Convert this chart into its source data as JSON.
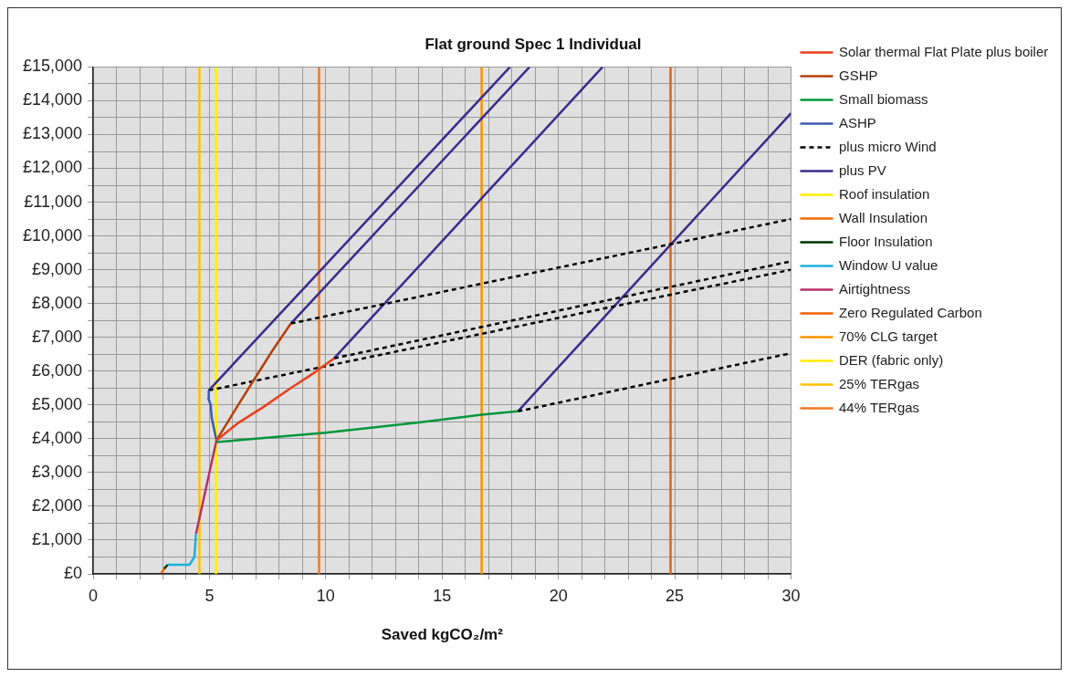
{
  "chart_data": {
    "type": "line",
    "title": "Flat ground Spec 1 Individual",
    "xlabel": "Saved kgCO₂/m²",
    "xlim": [
      0,
      30
    ],
    "xticks": [
      0,
      {
        "value": 1,
        "label": null
      },
      {
        "value": 2,
        "label": null
      },
      {
        "value": 3,
        "label": null
      },
      {
        "value": 4,
        "label": null
      },
      5,
      {
        "value": 6,
        "label": null
      },
      {
        "value": 7,
        "label": null
      },
      {
        "value": 8,
        "label": null
      },
      {
        "value": 9,
        "label": null
      },
      10,
      {
        "value": 11,
        "label": null
      },
      {
        "value": 12,
        "label": null
      },
      {
        "value": 13,
        "label": null
      },
      {
        "value": 14,
        "label": null
      },
      15,
      {
        "value": 16,
        "label": null
      },
      {
        "value": 17,
        "label": null
      },
      {
        "value": 18,
        "label": null
      },
      {
        "value": 19,
        "label": null
      },
      20,
      {
        "value": 21,
        "label": null
      },
      {
        "value": 22,
        "label": null
      },
      {
        "value": 23,
        "label": null
      },
      {
        "value": 24,
        "label": null
      },
      25,
      {
        "value": 26,
        "label": null
      },
      {
        "value": 27,
        "label": null
      },
      {
        "value": 28,
        "label": null
      },
      {
        "value": 29,
        "label": null
      },
      30
    ],
    "ylim": [
      0,
      15000
    ],
    "yticks": [
      {
        "value": 0,
        "label": "£0"
      },
      {
        "value": 500,
        "label": null
      },
      {
        "value": 1000,
        "label": "£1,000"
      },
      {
        "value": 1500,
        "label": null
      },
      {
        "value": 2000,
        "label": "£2,000"
      },
      {
        "value": 2500,
        "label": null
      },
      {
        "value": 3000,
        "label": "£3,000"
      },
      {
        "value": 3500,
        "label": null
      },
      {
        "value": 4000,
        "label": "£4,000"
      },
      {
        "value": 4500,
        "label": null
      },
      {
        "value": 5000,
        "label": "£5,000"
      },
      {
        "value": 5500,
        "label": null
      },
      {
        "value": 6000,
        "label": "£6,000"
      },
      {
        "value": 6500,
        "label": null
      },
      {
        "value": 7000,
        "label": "£7,000"
      },
      {
        "value": 7500,
        "label": null
      },
      {
        "value": 8000,
        "label": "£8,000"
      },
      {
        "value": 8500,
        "label": null
      },
      {
        "value": 9000,
        "label": "£9,000"
      },
      {
        "value": 9500,
        "label": null
      },
      {
        "value": 10000,
        "label": "£10,000"
      },
      {
        "value": 10500,
        "label": null
      },
      {
        "value": 11000,
        "label": "£11,000"
      },
      {
        "value": 11500,
        "label": null
      },
      {
        "value": 12000,
        "label": "£12,000"
      },
      {
        "value": 12500,
        "label": null
      },
      {
        "value": 13000,
        "label": "£13,000"
      },
      {
        "value": 13500,
        "label": null
      },
      {
        "value": 14000,
        "label": "£14,000"
      },
      {
        "value": 14500,
        "label": null
      },
      {
        "value": 15000,
        "label": "£15,000"
      }
    ],
    "grid": true,
    "legend": "right",
    "marker": "none",
    "line_style": "solid",
    "series": [
      {
        "name": "Solar thermal Flat Plate plus boiler",
        "color": "#e8401c",
        "x": [
          5.3,
          6.2,
          7.3,
          8.5,
          9.5,
          10.36
        ],
        "values": [
          3950,
          4450,
          4930,
          5500,
          5950,
          6380
        ]
      },
      {
        "name": "GSHP",
        "color": "#b5400a",
        "x": [
          5.3,
          6.1,
          6.9,
          7.7,
          8.5
        ],
        "values": [
          3950,
          4850,
          5730,
          6600,
          7410
        ]
      },
      {
        "name": "Small biomass",
        "color": "#00963c",
        "x": [
          5.3,
          10,
          14,
          16.7,
          18.26
        ],
        "values": [
          3900,
          4180,
          4480,
          4710,
          4810
        ]
      },
      {
        "name": "ASHP",
        "color": "#3c5ab4",
        "x": [
          5.3,
          5.1,
          5.05,
          4.95,
          4.97
        ],
        "values": [
          3950,
          4600,
          5000,
          5200,
          5430
        ]
      },
      {
        "name": "plus micro Wind",
        "color": "#000000",
        "line_style": "dashed",
        "x": [
          4.97,
          30,
          null,
          8.5,
          30,
          null,
          10.36,
          30,
          null,
          18.26,
          30
        ],
        "values": [
          5430,
          9000,
          null,
          7410,
          10500,
          null,
          6380,
          9250,
          null,
          4810,
          6530
        ]
      },
      {
        "name": "plus PV",
        "color": "#3c2a8c",
        "x": [
          4.97,
          17.92,
          null,
          8.5,
          18.76,
          null,
          10.36,
          21.9,
          null,
          18.26,
          30
        ],
        "values": [
          5430,
          15000,
          null,
          7410,
          15000,
          null,
          6380,
          15000,
          null,
          4810,
          13630
        ]
      },
      {
        "name": "Roof insulation",
        "color": "#ffee00",
        "x": [
          null
        ],
        "values": [
          null
        ]
      },
      {
        "name": "Wall Insulation",
        "color": "#f06a00",
        "x": [
          2.93,
          3.05
        ],
        "values": [
          30,
          150
        ]
      },
      {
        "name": "Floor Insulation",
        "color": "#003300",
        "x": [
          3.05,
          3.2
        ],
        "values": [
          150,
          270
        ]
      },
      {
        "name": "Window U value",
        "color": "#1ab0d8",
        "x": [
          3.2,
          4.14,
          4.35,
          4.42
        ],
        "values": [
          270,
          270,
          500,
          1180
        ]
      },
      {
        "name": "Airtightness",
        "color": "#b8306a",
        "x": [
          4.42,
          5.3
        ],
        "values": [
          1180,
          3950
        ]
      },
      {
        "name": "Zero Regulated Carbon",
        "color": "#f06000",
        "x": [
          24.82,
          24.82
        ],
        "values": [
          0,
          15000
        ]
      },
      {
        "name": "70% CLG target",
        "color": "#f79400",
        "x": [
          16.7,
          16.7
        ],
        "values": [
          0,
          15000
        ]
      },
      {
        "name": "DER (fabric only)",
        "color": "#ffee00",
        "x": [
          5.28,
          5.28
        ],
        "values": [
          0,
          15000
        ]
      },
      {
        "name": "25% TERgas",
        "color": "#ffc000",
        "x": [
          4.57,
          4.57
        ],
        "values": [
          0,
          15000
        ]
      },
      {
        "name": "44% TERgas",
        "color": "#f07a20",
        "x": [
          9.71,
          9.71
        ],
        "values": [
          0,
          15000
        ]
      }
    ]
  }
}
